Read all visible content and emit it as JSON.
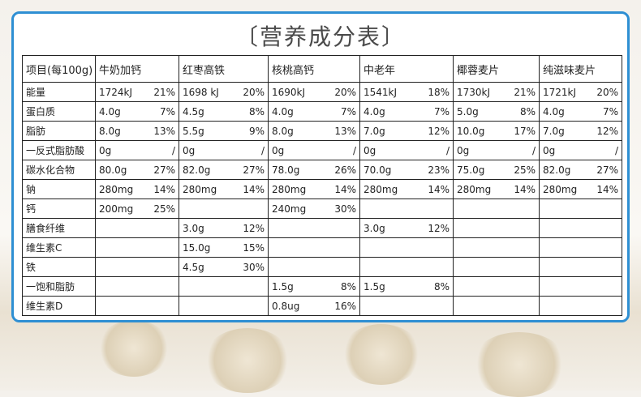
{
  "title": "〔营养成分表〕",
  "table": {
    "header": [
      "项目(每100g)",
      "牛奶加钙",
      "红枣高铁",
      "核桃高钙",
      "中老年",
      "椰蓉麦片",
      "纯滋味麦片"
    ],
    "rows": [
      {
        "label": "能量",
        "cells": [
          [
            "1724kJ",
            "21%"
          ],
          [
            "1698 kJ",
            "20%"
          ],
          [
            "1690kJ",
            "20%"
          ],
          [
            "1541kJ",
            "18%"
          ],
          [
            "1730kJ",
            "21%"
          ],
          [
            "1721kJ",
            "20%"
          ]
        ]
      },
      {
        "label": "蛋白质",
        "cells": [
          [
            "4.0g",
            "7%"
          ],
          [
            "4.5g",
            "8%"
          ],
          [
            "4.0g",
            "7%"
          ],
          [
            "4.0g",
            "7%"
          ],
          [
            "5.0g",
            "8%"
          ],
          [
            "4.0g",
            "7%"
          ]
        ]
      },
      {
        "label": "脂肪",
        "cells": [
          [
            "8.0g",
            "13%"
          ],
          [
            "5.5g",
            "9%"
          ],
          [
            "8.0g",
            "13%"
          ],
          [
            "7.0g",
            "12%"
          ],
          [
            "10.0g",
            "17%"
          ],
          [
            "7.0g",
            "12%"
          ]
        ]
      },
      {
        "label": "一反式脂肪酸",
        "cells": [
          [
            "0g",
            "/"
          ],
          [
            "0g",
            "/"
          ],
          [
            "0g",
            "/"
          ],
          [
            "0g",
            "/"
          ],
          [
            "0g",
            "/"
          ],
          [
            "0g",
            "/"
          ]
        ]
      },
      {
        "label": "碳水化合物",
        "cells": [
          [
            "80.0g",
            "27%"
          ],
          [
            "82.0g",
            "27%"
          ],
          [
            "78.0g",
            "26%"
          ],
          [
            "70.0g",
            "23%"
          ],
          [
            "75.0g",
            "25%"
          ],
          [
            "82.0g",
            "27%"
          ]
        ]
      },
      {
        "label": "钠",
        "cells": [
          [
            "280mg",
            "14%"
          ],
          [
            "280mg",
            "14%"
          ],
          [
            "280mg",
            "14%"
          ],
          [
            "280mg",
            "14%"
          ],
          [
            "280mg",
            "14%"
          ],
          [
            "280mg",
            "14%"
          ]
        ]
      },
      {
        "label": "钙",
        "cells": [
          [
            "200mg",
            "25%"
          ],
          null,
          [
            "240mg",
            "30%"
          ],
          null,
          null,
          null
        ]
      },
      {
        "label": "膳食纤维",
        "cells": [
          null,
          [
            "3.0g",
            "12%"
          ],
          null,
          [
            "3.0g",
            "12%"
          ],
          null,
          null
        ]
      },
      {
        "label": "维生素C",
        "cells": [
          null,
          [
            "15.0g",
            "15%"
          ],
          null,
          null,
          null,
          null
        ]
      },
      {
        "label": "铁",
        "cells": [
          null,
          [
            "4.5g",
            "30%"
          ],
          null,
          null,
          null,
          null
        ]
      },
      {
        "label": "一饱和脂肪",
        "cells": [
          null,
          null,
          [
            "1.5g",
            "8%"
          ],
          [
            "1.5g",
            "8%"
          ],
          null,
          null
        ]
      },
      {
        "label": "维生素D",
        "cells": [
          null,
          null,
          [
            "0.8ug",
            "16%"
          ],
          null,
          null,
          null
        ]
      }
    ]
  }
}
